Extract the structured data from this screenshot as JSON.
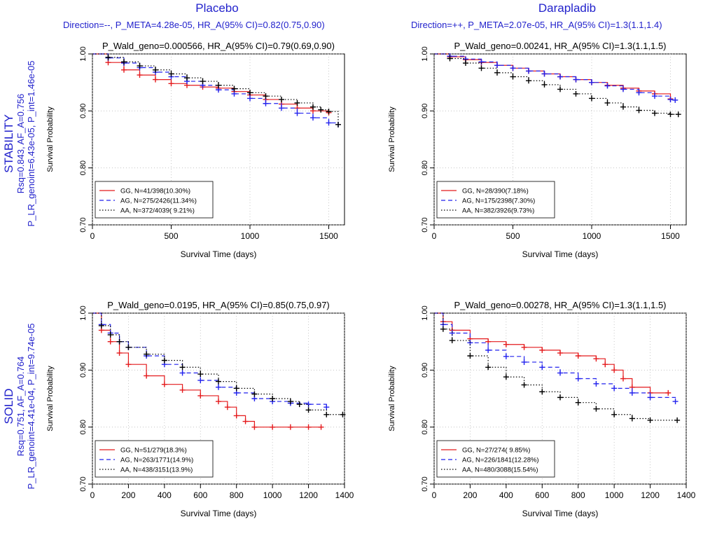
{
  "columns": [
    {
      "title": "Placebo",
      "subtitle": "Direction=--, P_META=4.28e-05, HR_A(95% CI)=0.82(0.75,0.90)"
    },
    {
      "title": "Darapladib",
      "subtitle": "Direction=++, P_META=2.07e-05, HR_A(95% CI)=1.3(1.1,1.4)"
    }
  ],
  "rows": [
    {
      "name": "STABILITY",
      "line2": "Rsq=0.843, AF_A=0.756",
      "line3": "P_LR_genoint=6.43e-05, P_int=1.46e-05"
    },
    {
      "name": "SOLID",
      "line2": "Rsq=0.751, AF_A=0.764",
      "line3": "P_LR_genoint=4.41e-04, P_int=9.74e-05"
    }
  ],
  "colors": {
    "GG": "#e41a1c",
    "AG": "#2222ee",
    "AA": "#000000",
    "label": "#2222cc"
  },
  "chart_data": [
    {
      "type": "line",
      "title": "P_Wald_geno=0.000566, HR_A(95% CI)=0.79(0.69,0.90)",
      "xlabel": "Survival Time (days)",
      "ylabel": "Survival Probability",
      "xlim": [
        0,
        1600
      ],
      "ylim": [
        0.7,
        1.0
      ],
      "xticks": [
        0,
        500,
        1000,
        1500
      ],
      "yticks": [
        0.7,
        0.8,
        0.9,
        1.0
      ],
      "ytick_labels": [
        "0.70",
        "0.80",
        "0.90",
        "1.00"
      ],
      "legend_position": "bottom-left",
      "series": [
        {
          "name": "GG, N=41/398(10.30%)",
          "style": "solid",
          "x": [
            0,
            100,
            200,
            300,
            400,
            500,
            600,
            700,
            800,
            900,
            1000,
            1100,
            1200,
            1300,
            1400,
            1500
          ],
          "y": [
            1.0,
            0.985,
            0.972,
            0.963,
            0.955,
            0.948,
            0.945,
            0.942,
            0.94,
            0.934,
            0.928,
            0.92,
            0.912,
            0.905,
            0.9,
            0.897
          ]
        },
        {
          "name": "AG, N=275/2426(11.34%)",
          "style": "dashed",
          "x": [
            0,
            100,
            200,
            300,
            400,
            500,
            600,
            700,
            800,
            900,
            1000,
            1100,
            1200,
            1300,
            1400,
            1500,
            1560
          ],
          "y": [
            1.0,
            0.993,
            0.984,
            0.976,
            0.968,
            0.96,
            0.952,
            0.945,
            0.937,
            0.93,
            0.922,
            0.913,
            0.905,
            0.896,
            0.888,
            0.879,
            0.876
          ]
        },
        {
          "name": "AA, N=372/4039( 9.21%)",
          "style": "dotted",
          "x": [
            0,
            100,
            200,
            300,
            400,
            500,
            600,
            700,
            800,
            900,
            1000,
            1100,
            1200,
            1300,
            1400,
            1450,
            1500,
            1560
          ],
          "y": [
            1.0,
            0.994,
            0.986,
            0.979,
            0.972,
            0.965,
            0.958,
            0.952,
            0.945,
            0.939,
            0.932,
            0.926,
            0.92,
            0.914,
            0.907,
            0.902,
            0.899,
            0.876
          ]
        }
      ]
    },
    {
      "type": "line",
      "title": "P_Wald_geno=0.00241, HR_A(95% CI)=1.3(1.1,1.5)",
      "xlabel": "Survival Time (days)",
      "ylabel": "Survival Probability",
      "xlim": [
        0,
        1600
      ],
      "ylim": [
        0.7,
        1.0
      ],
      "xticks": [
        0,
        500,
        1000,
        1500
      ],
      "yticks": [
        0.7,
        0.8,
        0.9,
        1.0
      ],
      "ytick_labels": [
        "0.70",
        "0.80",
        "0.90",
        "1.00"
      ],
      "legend_position": "bottom-left",
      "series": [
        {
          "name": "GG, N=28/390(7.18%)",
          "style": "solid",
          "x": [
            0,
            100,
            200,
            300,
            400,
            500,
            600,
            700,
            800,
            900,
            1000,
            1100,
            1200,
            1300,
            1400,
            1500
          ],
          "y": [
            1.0,
            0.995,
            0.99,
            0.985,
            0.98,
            0.975,
            0.97,
            0.965,
            0.96,
            0.955,
            0.95,
            0.945,
            0.94,
            0.935,
            0.93,
            0.921
          ]
        },
        {
          "name": "AG, N=175/2398(7.30%)",
          "style": "dashed",
          "x": [
            0,
            100,
            200,
            300,
            400,
            500,
            600,
            700,
            800,
            900,
            1000,
            1100,
            1200,
            1300,
            1400,
            1500,
            1530
          ],
          "y": [
            1.0,
            0.996,
            0.991,
            0.986,
            0.98,
            0.975,
            0.97,
            0.965,
            0.96,
            0.955,
            0.95,
            0.944,
            0.938,
            0.932,
            0.926,
            0.92,
            0.919
          ]
        },
        {
          "name": "AA, N=382/3926(9.73%)",
          "style": "dotted",
          "x": [
            0,
            100,
            200,
            300,
            400,
            500,
            600,
            700,
            800,
            900,
            1000,
            1100,
            1200,
            1300,
            1400,
            1500,
            1550
          ],
          "y": [
            1.0,
            0.992,
            0.984,
            0.975,
            0.967,
            0.96,
            0.953,
            0.946,
            0.938,
            0.93,
            0.922,
            0.914,
            0.907,
            0.901,
            0.896,
            0.894,
            0.894
          ]
        }
      ]
    },
    {
      "type": "line",
      "title": "P_Wald_geno=0.0195, HR_A(95% CI)=0.85(0.75,0.97)",
      "xlabel": "Survival Time (days)",
      "ylabel": "Survival Probability",
      "xlim": [
        0,
        1400
      ],
      "ylim": [
        0.7,
        1.0
      ],
      "xticks": [
        0,
        200,
        400,
        600,
        800,
        1000,
        1200,
        1400
      ],
      "yticks": [
        0.7,
        0.8,
        0.9,
        1.0
      ],
      "ytick_labels": [
        "0.70",
        "0.80",
        "0.90",
        "1.00"
      ],
      "legend_position": "bottom-left",
      "series": [
        {
          "name": "GG, N=51/279(18.3%)",
          "style": "solid",
          "x": [
            0,
            50,
            100,
            150,
            200,
            300,
            400,
            500,
            600,
            700,
            750,
            800,
            850,
            900,
            1000,
            1100,
            1200,
            1270
          ],
          "y": [
            1.0,
            0.97,
            0.95,
            0.93,
            0.91,
            0.89,
            0.875,
            0.865,
            0.855,
            0.845,
            0.835,
            0.82,
            0.81,
            0.8,
            0.8,
            0.8,
            0.8,
            0.8
          ]
        },
        {
          "name": "AG, N=263/1771(14.9%)",
          "style": "dashed",
          "x": [
            0,
            50,
            100,
            150,
            200,
            300,
            400,
            500,
            600,
            700,
            800,
            900,
            1000,
            1100,
            1200,
            1300
          ],
          "y": [
            1.0,
            0.98,
            0.965,
            0.95,
            0.94,
            0.925,
            0.91,
            0.895,
            0.882,
            0.87,
            0.86,
            0.85,
            0.845,
            0.842,
            0.84,
            0.835
          ]
        },
        {
          "name": "AA, N=438/3151(13.9%)",
          "style": "dotted",
          "x": [
            0,
            50,
            100,
            150,
            200,
            300,
            400,
            500,
            600,
            700,
            800,
            900,
            1000,
            1100,
            1150,
            1200,
            1300,
            1390
          ],
          "y": [
            1.0,
            0.978,
            0.962,
            0.95,
            0.94,
            0.928,
            0.917,
            0.905,
            0.893,
            0.88,
            0.868,
            0.858,
            0.85,
            0.845,
            0.84,
            0.83,
            0.822,
            0.822
          ]
        }
      ]
    },
    {
      "type": "line",
      "title": "P_Wald_geno=0.00278, HR_A(95% CI)=1.3(1.1,1.5)",
      "xlabel": "Survival Time (days)",
      "ylabel": "Survival Probability",
      "xlim": [
        0,
        1400
      ],
      "ylim": [
        0.7,
        1.0
      ],
      "xticks": [
        0,
        200,
        400,
        600,
        800,
        1000,
        1200,
        1400
      ],
      "yticks": [
        0.7,
        0.8,
        0.9,
        1.0
      ],
      "ytick_labels": [
        "0.70",
        "0.80",
        "0.90",
        "1.00"
      ],
      "legend_position": "bottom-left",
      "series": [
        {
          "name": "GG, N=27/274( 9.85%)",
          "style": "solid",
          "x": [
            0,
            50,
            100,
            200,
            300,
            400,
            500,
            600,
            700,
            800,
            900,
            950,
            1000,
            1050,
            1100,
            1200,
            1300
          ],
          "y": [
            1.0,
            0.985,
            0.97,
            0.955,
            0.95,
            0.945,
            0.94,
            0.935,
            0.93,
            0.925,
            0.92,
            0.91,
            0.9,
            0.885,
            0.87,
            0.86,
            0.86
          ]
        },
        {
          "name": "AG, N=226/1841(12.28%)",
          "style": "dashed",
          "x": [
            0,
            50,
            100,
            200,
            300,
            400,
            500,
            600,
            700,
            800,
            900,
            1000,
            1100,
            1200,
            1340
          ],
          "y": [
            1.0,
            0.98,
            0.965,
            0.948,
            0.935,
            0.924,
            0.914,
            0.905,
            0.895,
            0.885,
            0.876,
            0.868,
            0.86,
            0.852,
            0.845
          ]
        },
        {
          "name": "AA, N=480/3088(15.54%)",
          "style": "dotted",
          "x": [
            0,
            50,
            100,
            200,
            300,
            400,
            500,
            600,
            700,
            800,
            900,
            1000,
            1100,
            1200,
            1350
          ],
          "y": [
            1.0,
            0.972,
            0.952,
            0.925,
            0.905,
            0.888,
            0.874,
            0.862,
            0.852,
            0.843,
            0.832,
            0.822,
            0.815,
            0.812,
            0.812
          ]
        }
      ]
    }
  ]
}
